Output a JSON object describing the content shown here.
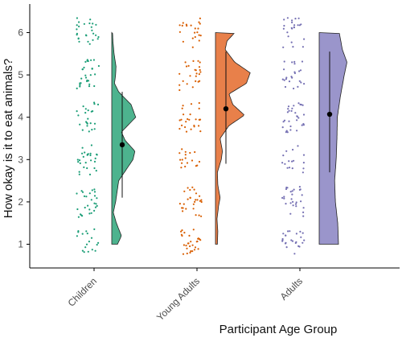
{
  "chart_data": {
    "type": "raincloud",
    "title": "",
    "xlabel": "Participant Age Group",
    "ylabel": "How okay is it to eat animals?",
    "ylim": [
      0.6,
      6.45
    ],
    "yticks": [
      1,
      2,
      3,
      4,
      5,
      6
    ],
    "grid": false,
    "legend": "none",
    "categories": [
      "Children",
      "Young Adults",
      "Adults"
    ],
    "series": [
      {
        "name": "Children",
        "color": "#1b9e77",
        "fill": "#4db38e",
        "mean": 3.35,
        "ci": [
          2.1,
          4.6
        ],
        "density": [
          [
            1.0,
            0.15
          ],
          [
            1.2,
            0.25
          ],
          [
            1.5,
            0.12
          ],
          [
            1.75,
            0.04
          ],
          [
            2.0,
            0.1
          ],
          [
            2.5,
            0.18
          ],
          [
            3.0,
            0.55
          ],
          [
            3.2,
            0.6
          ],
          [
            3.45,
            0.35
          ],
          [
            3.65,
            0.25
          ],
          [
            4.0,
            0.62
          ],
          [
            4.3,
            0.5
          ],
          [
            4.6,
            0.18
          ],
          [
            4.8,
            0.07
          ],
          [
            5.0,
            0.1
          ],
          [
            5.2,
            0.11
          ],
          [
            5.5,
            0.06
          ],
          [
            5.8,
            0.03
          ],
          [
            6.0,
            0.02
          ]
        ]
      },
      {
        "name": "Young Adults",
        "color": "#d95f02",
        "fill": "#e8804a",
        "mean": 4.2,
        "ci": [
          2.9,
          5.55
        ],
        "density": [
          [
            1.0,
            0.05
          ],
          [
            1.3,
            0.06
          ],
          [
            1.6,
            0.04
          ],
          [
            1.9,
            0.08
          ],
          [
            2.1,
            0.12
          ],
          [
            2.4,
            0.06
          ],
          [
            2.7,
            0.05
          ],
          [
            3.0,
            0.15
          ],
          [
            3.2,
            0.18
          ],
          [
            3.5,
            0.12
          ],
          [
            3.8,
            0.35
          ],
          [
            4.05,
            0.75
          ],
          [
            4.3,
            0.45
          ],
          [
            4.55,
            0.35
          ],
          [
            4.8,
            0.8
          ],
          [
            5.05,
            0.9
          ],
          [
            5.3,
            0.5
          ],
          [
            5.6,
            0.25
          ],
          [
            5.8,
            0.3
          ],
          [
            6.0,
            0.5
          ]
        ]
      },
      {
        "name": "Adults",
        "color": "#7570b3",
        "fill": "#9a95cb",
        "mean": 4.07,
        "ci": [
          2.7,
          5.55
        ],
        "density": [
          [
            1.0,
            0.5
          ],
          [
            1.5,
            0.48
          ],
          [
            2.0,
            0.42
          ],
          [
            2.5,
            0.4
          ],
          [
            3.0,
            0.44
          ],
          [
            3.5,
            0.46
          ],
          [
            4.0,
            0.47
          ],
          [
            4.5,
            0.55
          ],
          [
            5.0,
            0.65
          ],
          [
            5.3,
            0.72
          ],
          [
            5.6,
            0.6
          ],
          [
            6.0,
            0.52
          ]
        ]
      }
    ]
  }
}
